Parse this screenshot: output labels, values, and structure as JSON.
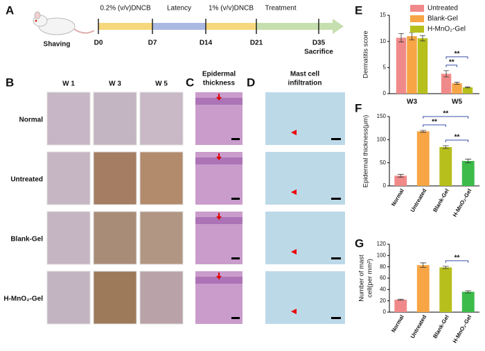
{
  "timeline": {
    "panel": "A",
    "start_label": "Shaving",
    "phases": [
      "0.2% (v/v)DNCB",
      "Latency",
      "1% (v/v)DNCB",
      "Treatment"
    ],
    "days": [
      "D0",
      "D7",
      "D14",
      "D21",
      "D35"
    ],
    "end_label": "Sacrifice"
  },
  "photos": {
    "panels": [
      "B",
      "C",
      "D"
    ],
    "columns": [
      "W 1",
      "W 3",
      "W 5"
    ],
    "histology_columns": [
      [
        "Epidermal",
        "thickness"
      ],
      [
        "Mast cell",
        "infiltration"
      ]
    ],
    "rows": [
      "Normal",
      "Untreated",
      "Blank-Gel",
      "H-MnO₂-Gel"
    ]
  },
  "chart_data": [
    {
      "panel": "E",
      "type": "bar",
      "ylabel": "Dermatitis score",
      "categories": [
        "W3",
        "W5"
      ],
      "series": [
        {
          "name": "Untreated",
          "color": "#f08a8a",
          "values": [
            10.7,
            3.8
          ],
          "errors": [
            0.8,
            0.6
          ]
        },
        {
          "name": "Blank-Gel",
          "color": "#f7a545",
          "values": [
            11.0,
            2.0
          ],
          "errors": [
            0.7,
            0.2
          ]
        },
        {
          "name": "H-MnO₂-Gel",
          "color": "#b7bf1c",
          "values": [
            10.6,
            1.2
          ],
          "errors": [
            0.5,
            0.1
          ]
        }
      ],
      "ylim": [
        0,
        15
      ],
      "yticks": [
        0,
        5,
        10,
        15
      ],
      "legend": "upper right",
      "comparisons": [
        {
          "label": "**",
          "category": "W5",
          "pair": [
            "Untreated",
            "Blank-Gel"
          ]
        },
        {
          "label": "**",
          "category": "W5",
          "pair": [
            "Untreated",
            "H-MnO₂-Gel"
          ]
        }
      ]
    },
    {
      "panel": "F",
      "type": "bar",
      "ylabel": "Epidermal thickness(μm)",
      "categories": [
        "Normal",
        "Untreated",
        "Blank-Gel",
        "H-MnO₂-Gel"
      ],
      "values": [
        22,
        118,
        84,
        54
      ],
      "errors": [
        3,
        2,
        3,
        4
      ],
      "colors": [
        "#f08a8a",
        "#f7a545",
        "#b7bf1c",
        "#3dbb4a"
      ],
      "ylim": [
        0,
        150
      ],
      "yticks": [
        0,
        50,
        100,
        150
      ],
      "comparisons": [
        {
          "label": "**",
          "pair": [
            "Untreated",
            "Blank-Gel"
          ]
        },
        {
          "label": "**",
          "pair": [
            "Blank-Gel",
            "H-MnO₂-Gel"
          ]
        },
        {
          "label": "**",
          "pair": [
            "Untreated",
            "H-MnO₂-Gel"
          ]
        }
      ]
    },
    {
      "panel": "G",
      "type": "bar",
      "ylabel": [
        "Number of mast",
        "cell(per mm²)"
      ],
      "categories": [
        "Normal",
        "Untreated",
        "Blank-Gel",
        "H-MnO₂-Gel"
      ],
      "values": [
        22,
        83,
        79,
        36
      ],
      "errors": [
        1,
        4,
        2,
        2
      ],
      "colors": [
        "#f08a8a",
        "#f7a545",
        "#b7bf1c",
        "#3dbb4a"
      ],
      "ylim": [
        0,
        120
      ],
      "yticks": [
        0,
        20,
        40,
        60,
        80,
        100,
        120
      ],
      "comparisons": [
        {
          "label": "**",
          "pair": [
            "Blank-Gel",
            "H-MnO₂-Gel"
          ]
        }
      ]
    }
  ]
}
